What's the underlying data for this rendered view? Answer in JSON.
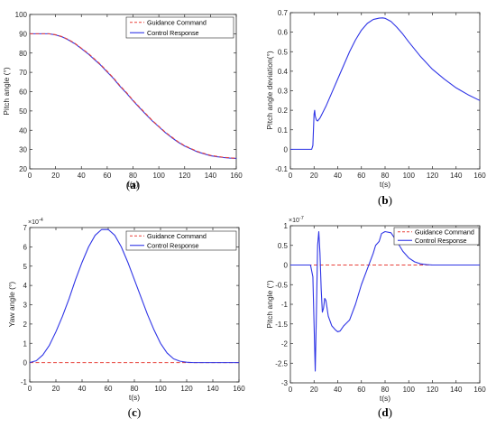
{
  "chart_data": [
    {
      "panel": "(a)",
      "panel_letter": "a",
      "type": "line",
      "xlabel": "t(s)",
      "ylabel": "Pitch angle (°)",
      "xlim": [
        0,
        160
      ],
      "ylim": [
        20,
        100
      ],
      "xticks": [
        0,
        20,
        40,
        60,
        80,
        100,
        120,
        140,
        160
      ],
      "yticks": [
        20,
        30,
        40,
        50,
        60,
        70,
        80,
        90,
        100
      ],
      "exponent": "",
      "grid": false,
      "legend": "top-right",
      "series": [
        {
          "name": "Guidance Command",
          "color": "#e8403a",
          "style": "dashed",
          "x": [
            0,
            10,
            15,
            20,
            25,
            30,
            35,
            40,
            45,
            50,
            55,
            60,
            65,
            70,
            75,
            80,
            85,
            90,
            95,
            100,
            105,
            110,
            115,
            120,
            125,
            130,
            135,
            140,
            145,
            150,
            155,
            160
          ],
          "y": [
            90,
            90,
            90,
            89.5,
            88.5,
            87,
            85,
            82.5,
            80,
            77,
            74,
            70.5,
            67,
            63,
            59.5,
            55.5,
            52,
            48.5,
            45,
            42,
            39,
            36.5,
            34,
            32,
            30.5,
            29,
            28,
            27,
            26.5,
            26,
            25.7,
            25.5
          ]
        },
        {
          "name": "Control Response",
          "color": "#2f35e6",
          "style": "solid",
          "x": [
            0,
            10,
            15,
            20,
            25,
            30,
            35,
            40,
            45,
            50,
            55,
            60,
            65,
            70,
            75,
            80,
            85,
            90,
            95,
            100,
            105,
            110,
            115,
            120,
            125,
            130,
            135,
            140,
            145,
            150,
            155,
            160
          ],
          "y": [
            90,
            90,
            90,
            89.4,
            88.4,
            86.8,
            84.8,
            82.3,
            79.7,
            76.7,
            73.7,
            70.2,
            66.7,
            62.7,
            59.2,
            55.3,
            51.7,
            48.2,
            44.8,
            41.8,
            38.8,
            36.2,
            33.8,
            31.8,
            30.3,
            28.8,
            27.8,
            26.8,
            26.3,
            25.9,
            25.6,
            25.4
          ]
        }
      ]
    },
    {
      "panel": "(b)",
      "panel_letter": "b",
      "type": "line",
      "xlabel": "t(s)",
      "ylabel": "Pitch angle deviation(°)",
      "xlim": [
        0,
        160
      ],
      "ylim": [
        -0.1,
        0.7
      ],
      "xticks": [
        0,
        20,
        40,
        60,
        80,
        100,
        120,
        140,
        160
      ],
      "yticks": [
        -0.1,
        0,
        0.1,
        0.2,
        0.3,
        0.4,
        0.5,
        0.6,
        0.7
      ],
      "exponent": "",
      "grid": false,
      "legend": "",
      "series": [
        {
          "name": "",
          "color": "#2f35e6",
          "style": "solid",
          "x": [
            0,
            18,
            19,
            19.5,
            20,
            20.5,
            21,
            22,
            23,
            25,
            30,
            35,
            40,
            45,
            50,
            55,
            60,
            65,
            70,
            75,
            78,
            80,
            85,
            90,
            95,
            100,
            110,
            120,
            130,
            140,
            150,
            160
          ],
          "y": [
            0,
            0,
            0.02,
            0.1,
            0.18,
            0.2,
            0.17,
            0.15,
            0.145,
            0.16,
            0.22,
            0.29,
            0.36,
            0.43,
            0.5,
            0.56,
            0.61,
            0.645,
            0.665,
            0.672,
            0.673,
            0.671,
            0.655,
            0.625,
            0.59,
            0.55,
            0.475,
            0.41,
            0.36,
            0.315,
            0.28,
            0.25
          ]
        }
      ]
    },
    {
      "panel": "(c)",
      "panel_letter": "c",
      "type": "line",
      "xlabel": "t(s)",
      "ylabel": "Yaw angle (°)",
      "xlim": [
        0,
        160
      ],
      "ylim": [
        -1,
        7
      ],
      "xticks": [
        0,
        20,
        40,
        60,
        80,
        100,
        120,
        140,
        160
      ],
      "yticks": [
        -1,
        0,
        1,
        2,
        3,
        4,
        5,
        6,
        7
      ],
      "exponent": "×10",
      "exponent_power": "-4",
      "grid": false,
      "legend": "top-right",
      "series": [
        {
          "name": "Guidance Command",
          "color": "#e8403a",
          "style": "dashed",
          "x": [
            0,
            160
          ],
          "y": [
            0,
            0
          ]
        },
        {
          "name": "Control Response",
          "color": "#2f35e6",
          "style": "solid",
          "x": [
            0,
            5,
            10,
            15,
            20,
            25,
            30,
            35,
            40,
            45,
            50,
            55,
            60,
            65,
            70,
            75,
            80,
            85,
            90,
            95,
            100,
            105,
            110,
            115,
            120,
            125,
            130,
            140,
            150,
            160
          ],
          "y": [
            0,
            0.1,
            0.4,
            0.9,
            1.6,
            2.4,
            3.3,
            4.3,
            5.2,
            6.0,
            6.6,
            6.9,
            6.9,
            6.6,
            6.0,
            5.2,
            4.3,
            3.4,
            2.5,
            1.7,
            1.0,
            0.5,
            0.2,
            0.07,
            0.02,
            0,
            0,
            0,
            0,
            0
          ]
        }
      ]
    },
    {
      "panel": "(d)",
      "panel_letter": "d",
      "type": "line",
      "xlabel": "t(s)",
      "ylabel": "Pitch angle (°)",
      "xlim": [
        0,
        160
      ],
      "ylim": [
        -3,
        1
      ],
      "xticks": [
        0,
        20,
        40,
        60,
        80,
        100,
        120,
        140,
        160
      ],
      "yticks": [
        -3,
        -2.5,
        -2,
        -1.5,
        -1,
        -0.5,
        0,
        0.5,
        1
      ],
      "exponent": "×10",
      "exponent_power": "-7",
      "grid": false,
      "legend": "top-right",
      "series": [
        {
          "name": "Guidance Command",
          "color": "#e8403a",
          "style": "dashed",
          "x": [
            0,
            160
          ],
          "y": [
            0,
            0
          ]
        },
        {
          "name": "Control Response",
          "color": "#2f35e6",
          "style": "solid",
          "x": [
            0,
            17,
            19,
            20,
            21,
            22,
            23,
            24,
            25,
            26,
            27,
            28,
            29,
            30,
            32,
            35,
            38,
            40,
            42,
            45,
            50,
            55,
            60,
            65,
            70,
            72,
            75,
            77,
            80,
            85,
            90,
            95,
            100,
            105,
            110,
            115,
            120,
            125,
            130,
            140,
            150,
            160
          ],
          "y": [
            0,
            0,
            -0.3,
            -1.5,
            -2.7,
            -1.2,
            0.5,
            0.85,
            0.3,
            -0.6,
            -1.2,
            -1.1,
            -0.85,
            -0.9,
            -1.3,
            -1.55,
            -1.65,
            -1.7,
            -1.68,
            -1.55,
            -1.4,
            -1.0,
            -0.5,
            -0.1,
            0.3,
            0.5,
            0.6,
            0.8,
            0.85,
            0.82,
            0.6,
            0.35,
            0.18,
            0.08,
            0.03,
            0.01,
            0,
            0,
            0,
            0,
            0,
            0
          ]
        }
      ]
    }
  ]
}
